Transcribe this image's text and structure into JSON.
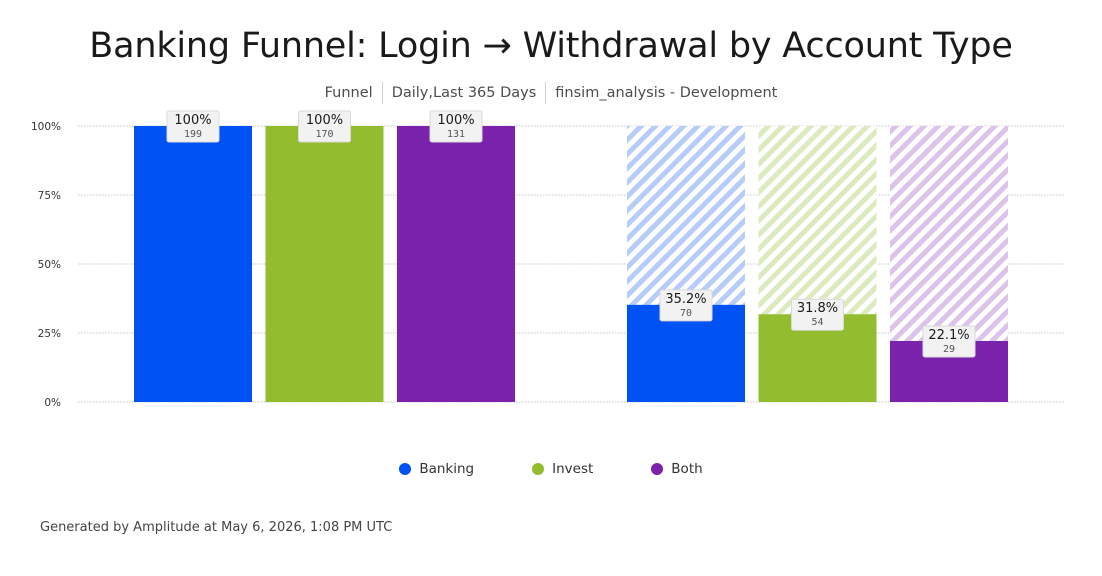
{
  "header": {
    "title": "Banking Funnel: Login → Withdrawal by Account Type",
    "subtitle": [
      "Funnel",
      "Daily,Last 365 Days",
      "finsim_analysis - Development"
    ]
  },
  "footer": {
    "text": "Generated by Amplitude at May 6, 2026, 1:08 PM UTC"
  },
  "chart_data": {
    "type": "bar",
    "title": "Banking Funnel: Login → Withdrawal by Account Type",
    "xlabel": "",
    "ylabel": "",
    "ylim": [
      0,
      100
    ],
    "y_ticks": [
      "100%",
      "75%",
      "50%",
      "25%",
      "0%"
    ],
    "grid": true,
    "legend_position": "bottom",
    "steps": [
      {
        "step": 1,
        "bars": [
          {
            "series": "Banking",
            "percent": 100,
            "percent_label": "100%",
            "count": "199"
          },
          {
            "series": "Invest",
            "percent": 100,
            "percent_label": "100%",
            "count": "170"
          },
          {
            "series": "Both",
            "percent": 100,
            "percent_label": "100%",
            "count": "131"
          }
        ]
      },
      {
        "step": 2,
        "bars": [
          {
            "series": "Banking",
            "percent": 35.2,
            "percent_label": "35.2%",
            "count": "70"
          },
          {
            "series": "Invest",
            "percent": 31.8,
            "percent_label": "31.8%",
            "count": "54"
          },
          {
            "series": "Both",
            "percent": 22.1,
            "percent_label": "22.1%",
            "count": "29"
          }
        ]
      }
    ],
    "series": [
      {
        "name": "Banking",
        "color": "#0052f3",
        "light": "#b7ccf7"
      },
      {
        "name": "Invest",
        "color": "#93bc2e",
        "light": "#dceac0"
      },
      {
        "name": "Both",
        "color": "#7b22ad",
        "light": "#dcc3ea"
      }
    ]
  }
}
